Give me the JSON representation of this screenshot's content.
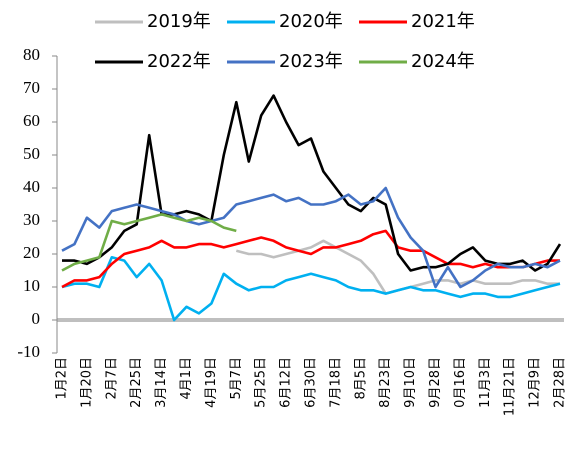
{
  "chart_data": {
    "type": "line",
    "categories": [
      "1月2日",
      null,
      "1月20日",
      null,
      "2月7日",
      null,
      "2月25日",
      null,
      "3月14日",
      null,
      "4月1日",
      null,
      "4月19日",
      null,
      "5月7日",
      null,
      "5月25日",
      null,
      "6月12日",
      null,
      "6月30日",
      null,
      "7月18日",
      null,
      "8月5日",
      null,
      "8月23日",
      null,
      "9月10日",
      null,
      "9月28日",
      null,
      "0月16日",
      null,
      "11月3日",
      null,
      "11月21日",
      null,
      "12月9日",
      null,
      "2月28日"
    ],
    "series": [
      {
        "name": "2019年",
        "color": "#bfbfbf",
        "values": [
          null,
          null,
          null,
          null,
          null,
          null,
          null,
          null,
          null,
          null,
          null,
          null,
          null,
          null,
          21,
          20,
          20,
          19,
          20,
          21,
          22,
          24,
          22,
          20,
          18,
          14,
          8,
          9,
          10,
          11,
          12,
          12,
          11,
          12,
          11,
          11,
          11,
          12,
          12,
          11,
          11
        ]
      },
      {
        "name": "2020年",
        "color": "#00b0f0",
        "values": [
          10,
          11,
          11,
          10,
          19,
          18,
          13,
          17,
          12,
          0,
          4,
          2,
          5,
          14,
          11,
          9,
          10,
          10,
          12,
          13,
          14,
          13,
          12,
          10,
          9,
          9,
          8,
          9,
          10,
          9,
          9,
          8,
          7,
          8,
          8,
          7,
          7,
          8,
          9,
          10,
          11
        ]
      },
      {
        "name": "2021年",
        "color": "#ff0000",
        "values": [
          10,
          12,
          12,
          13,
          17,
          20,
          21,
          22,
          24,
          22,
          22,
          23,
          23,
          22,
          23,
          24,
          25,
          24,
          22,
          21,
          20,
          22,
          22,
          23,
          24,
          26,
          27,
          22,
          21,
          21,
          19,
          17,
          17,
          16,
          17,
          16,
          16,
          16,
          17,
          18,
          18
        ]
      },
      {
        "name": "2022年",
        "color": "#000000",
        "values": [
          18,
          18,
          17,
          19,
          22,
          27,
          29,
          56,
          32,
          32,
          33,
          32,
          30,
          50,
          66,
          48,
          62,
          68,
          60,
          53,
          55,
          45,
          40,
          35,
          33,
          37,
          35,
          20,
          15,
          16,
          16,
          17,
          20,
          22,
          18,
          17,
          17,
          18,
          15,
          17,
          23
        ]
      },
      {
        "name": "2023年",
        "color": "#4472c4",
        "values": [
          21,
          23,
          31,
          28,
          33,
          34,
          35,
          34,
          33,
          32,
          30,
          29,
          30,
          31,
          35,
          36,
          37,
          38,
          36,
          37,
          35,
          35,
          36,
          38,
          35,
          36,
          40,
          31,
          25,
          21,
          10,
          16,
          10,
          12,
          15,
          17,
          16,
          16,
          17,
          16,
          18
        ]
      },
      {
        "name": "2024年",
        "color": "#70ad47",
        "values": [
          15,
          17,
          18,
          19,
          30,
          29,
          30,
          31,
          32,
          31,
          30,
          31,
          30,
          28,
          27,
          null,
          null,
          null,
          null,
          null,
          null,
          null,
          null,
          null,
          null,
          null,
          null,
          null,
          null,
          null,
          null,
          null,
          null,
          null,
          null,
          null,
          null,
          null,
          null,
          null,
          null
        ]
      }
    ],
    "ylim": [
      -10,
      80
    ],
    "yticks": [
      -10,
      0,
      10,
      20,
      30,
      40,
      50,
      60,
      70,
      80
    ]
  }
}
